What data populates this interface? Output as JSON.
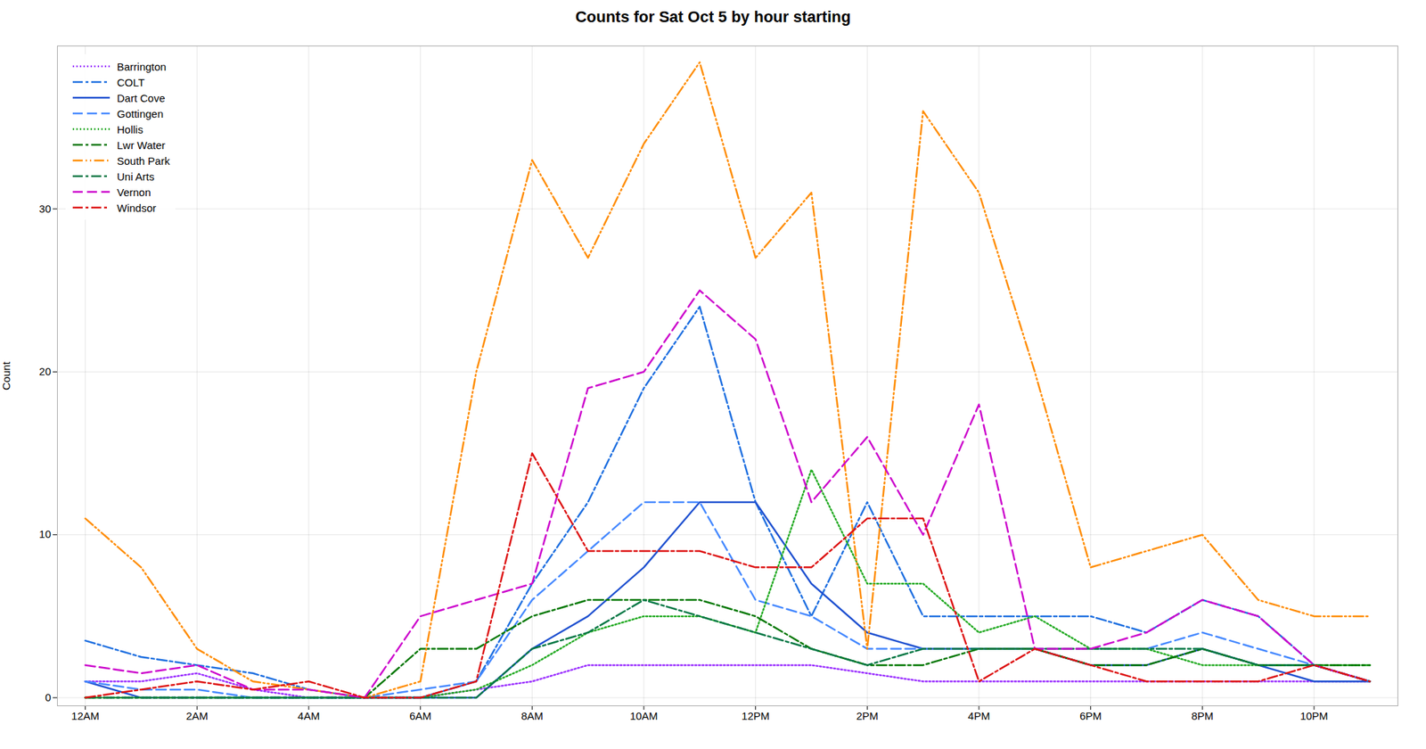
{
  "chart_data": {
    "type": "line",
    "title": "Counts for Sat Oct 5 by hour starting",
    "ylabel": "Count",
    "x": [
      0,
      1,
      2,
      3,
      4,
      5,
      6,
      7,
      8,
      9,
      10,
      11,
      12,
      13,
      14,
      15,
      16,
      17,
      18,
      19,
      20,
      21,
      22,
      23
    ],
    "xlim": [
      -0.5,
      23.5
    ],
    "xticks": [
      {
        "value": 0,
        "label": "12AM"
      },
      {
        "value": 2,
        "label": "2AM"
      },
      {
        "value": 4,
        "label": "4AM"
      },
      {
        "value": 6,
        "label": "6AM"
      },
      {
        "value": 8,
        "label": "8AM"
      },
      {
        "value": 10,
        "label": "10AM"
      },
      {
        "value": 12,
        "label": "12PM"
      },
      {
        "value": 14,
        "label": "2PM"
      },
      {
        "value": 16,
        "label": "4PM"
      },
      {
        "value": 18,
        "label": "6PM"
      },
      {
        "value": 20,
        "label": "8PM"
      },
      {
        "value": 22,
        "label": "10PM"
      }
    ],
    "ylim": [
      -0.5,
      40
    ],
    "yticks": [
      0,
      10,
      20,
      30
    ],
    "grid": true,
    "legend": "upper left",
    "series": [
      {
        "name": "Barrington",
        "color": "#9B30FF",
        "line_style": "dotted",
        "values": [
          1,
          1,
          1.5,
          0.5,
          0,
          0,
          0,
          0.5,
          1,
          2,
          2,
          2,
          2,
          2,
          1.5,
          1,
          1,
          1,
          1,
          1,
          1,
          1,
          1,
          1
        ]
      },
      {
        "name": "COLT",
        "color": "#1E6FE0",
        "line_style": "dashdot",
        "values": [
          3.5,
          2.5,
          2,
          1.5,
          0.5,
          0,
          0,
          1,
          7,
          12,
          19,
          24,
          12,
          5,
          12,
          5,
          5,
          5,
          5,
          4,
          6,
          5,
          2,
          1
        ]
      },
      {
        "name": "Dart Cove",
        "color": "#1E50D0",
        "line_style": "solid",
        "values": [
          1,
          0,
          0,
          0,
          0,
          0,
          0,
          0,
          3,
          5,
          8,
          12,
          12,
          7,
          4,
          3,
          3,
          3,
          2,
          2,
          3,
          2,
          1,
          1
        ]
      },
      {
        "name": "Gottingen",
        "color": "#4488FF",
        "line_style": "dashed",
        "values": [
          1,
          0.5,
          0.5,
          0,
          0,
          0,
          0.5,
          1,
          6,
          9,
          12,
          12,
          6,
          5,
          3,
          3,
          3,
          3,
          3,
          3,
          4,
          3,
          2,
          1
        ]
      },
      {
        "name": "Hollis",
        "color": "#22AA22",
        "line_style": "dotted",
        "values": [
          0,
          0,
          0,
          0,
          0,
          0,
          0,
          0.5,
          2,
          4,
          5,
          5,
          4,
          14,
          7,
          7,
          4,
          5,
          3,
          3,
          2,
          2,
          2,
          2
        ]
      },
      {
        "name": "Lwr Water",
        "color": "#007700",
        "line_style": "dashdot",
        "values": [
          0,
          0,
          0,
          0,
          0,
          0,
          3,
          3,
          5,
          6,
          6,
          6,
          5,
          3,
          2,
          2,
          3,
          3,
          2,
          2,
          3,
          2,
          2,
          2
        ]
      },
      {
        "name": "South Park",
        "color": "#FF8C00",
        "line_style": "dashdot_dotted",
        "values": [
          11,
          8,
          3,
          1,
          0.5,
          0,
          1,
          20,
          33,
          27,
          34,
          39,
          27,
          31,
          3,
          36,
          31,
          20,
          8,
          9,
          10,
          6,
          5,
          5
        ]
      },
      {
        "name": "Uni Arts",
        "color": "#007744",
        "line_style": "dashdot",
        "values": [
          0,
          0,
          0,
          0,
          0,
          0,
          0,
          0,
          3,
          4,
          6,
          5,
          4,
          3,
          2,
          3,
          3,
          3,
          3,
          3,
          3,
          2,
          2,
          1
        ]
      },
      {
        "name": "Vernon",
        "color": "#CC00CC",
        "line_style": "dashed",
        "values": [
          2,
          1.5,
          2,
          0.5,
          0.5,
          0,
          5,
          6,
          7,
          19,
          20,
          25,
          22,
          12,
          16,
          10,
          18,
          3,
          3,
          4,
          6,
          5,
          2,
          1
        ]
      },
      {
        "name": "Windsor",
        "color": "#DD1111",
        "line_style": "dashdot",
        "values": [
          0,
          0.5,
          1,
          0.5,
          1,
          0,
          0,
          1,
          15,
          9,
          9,
          9,
          8,
          8,
          11,
          11,
          1,
          3,
          2,
          1,
          1,
          1,
          2,
          1
        ]
      }
    ]
  }
}
